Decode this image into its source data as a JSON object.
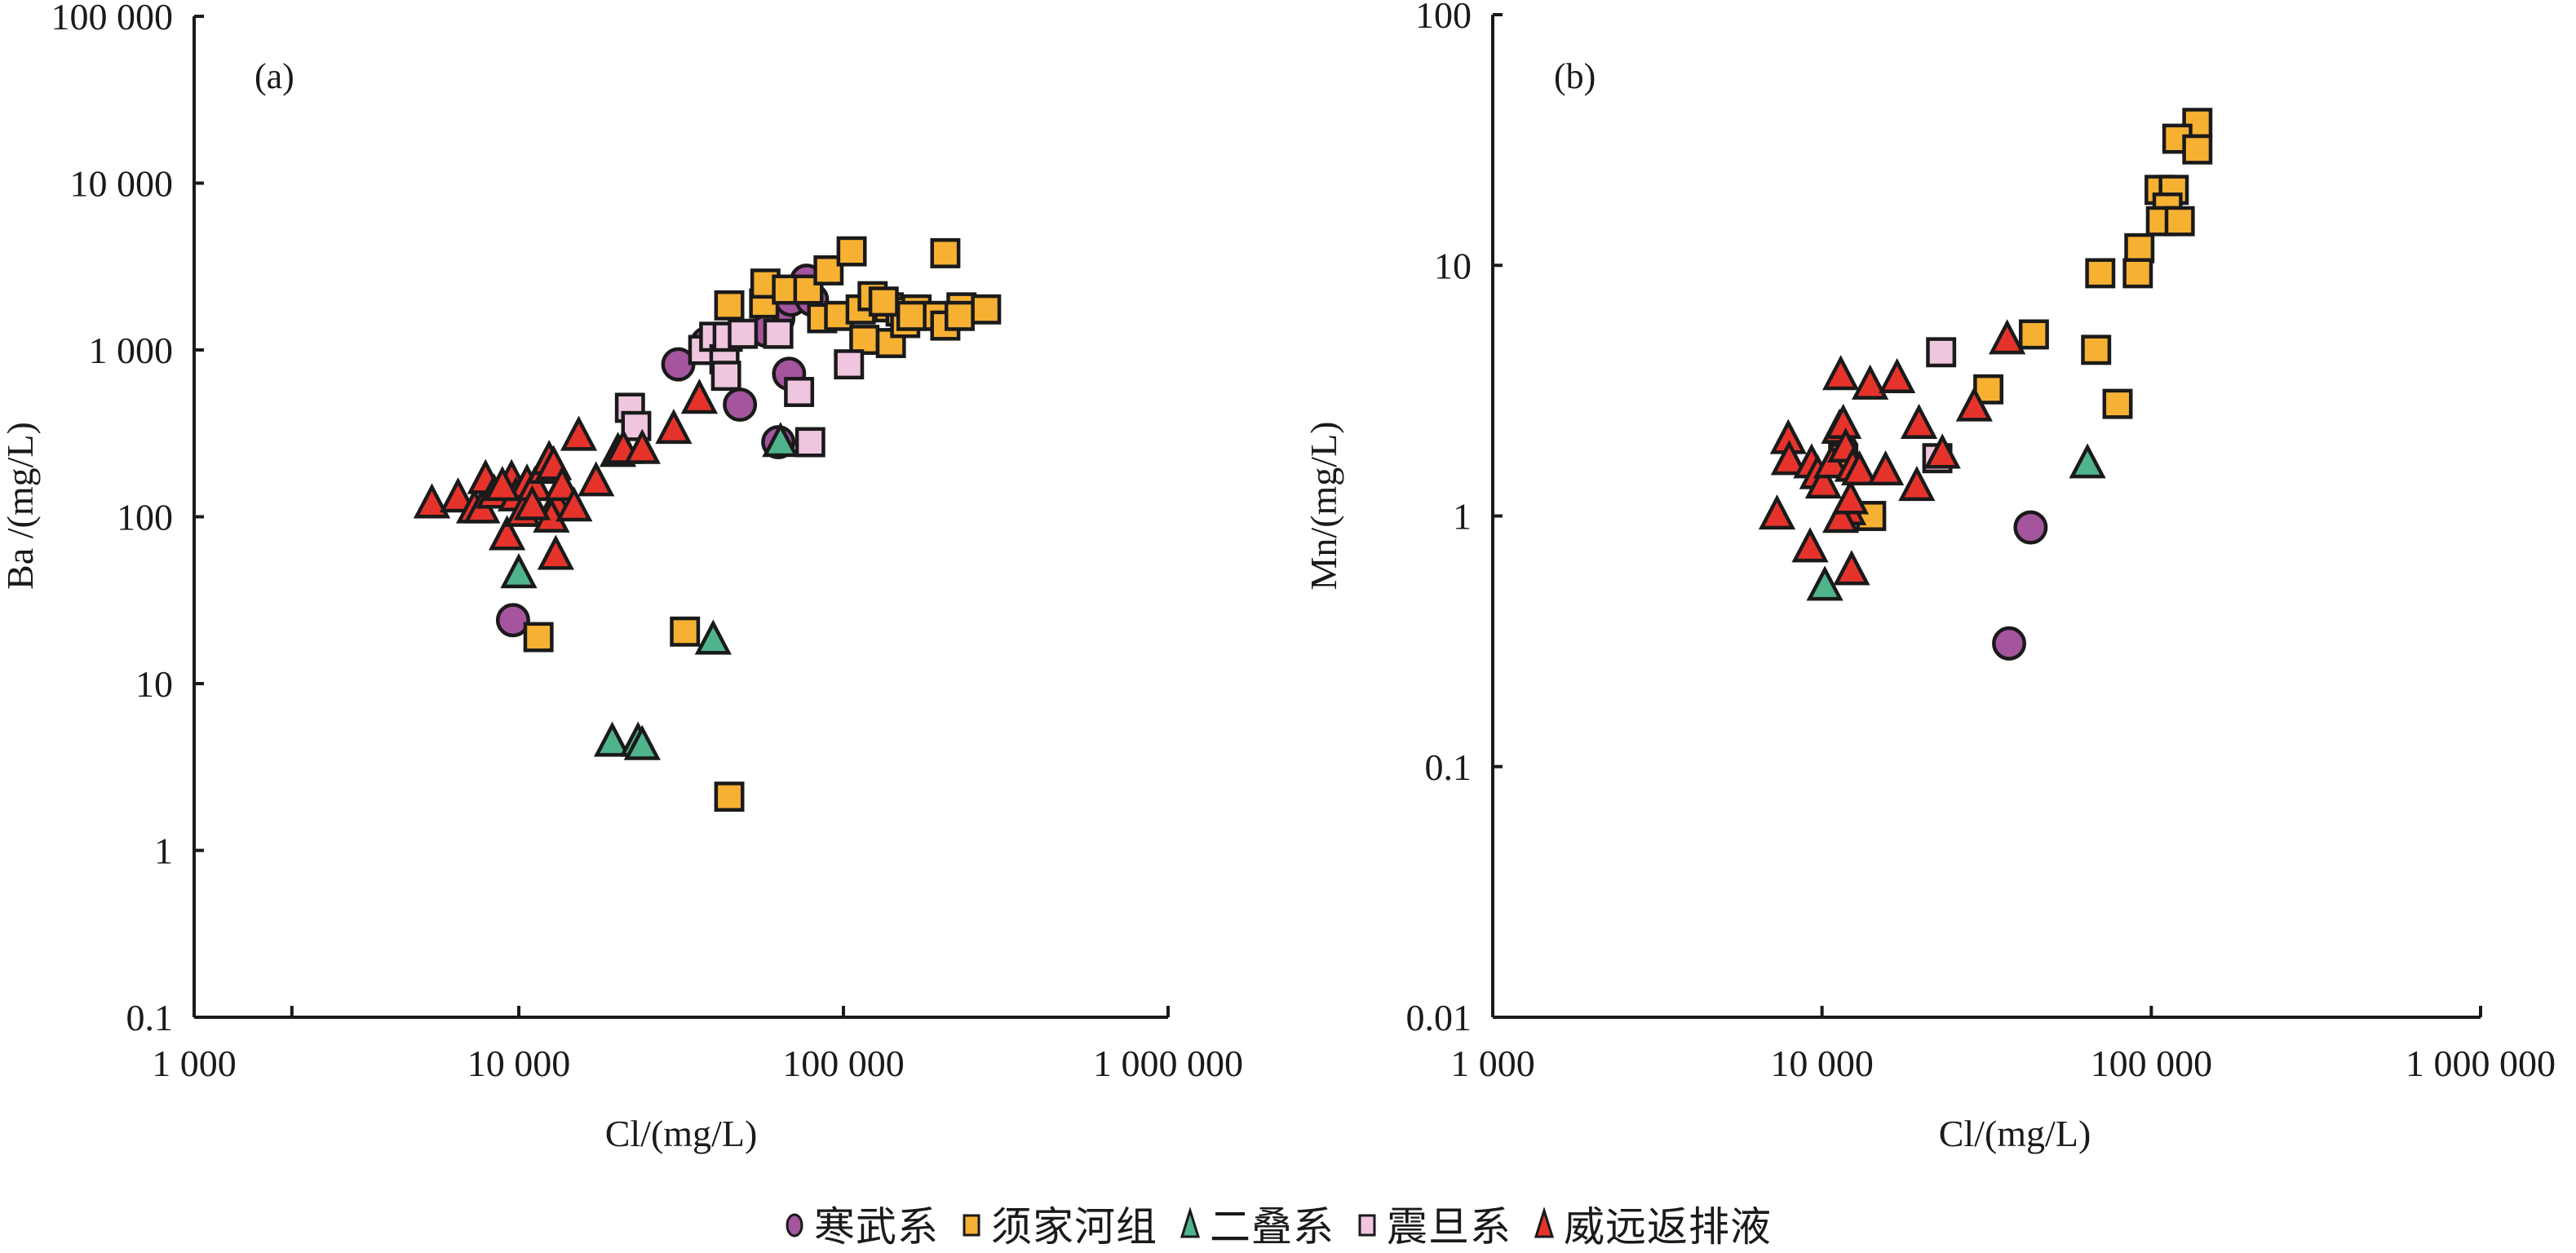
{
  "chart_data": [
    {
      "id": "a",
      "type": "scatter",
      "panel_label": "(a)",
      "title": "",
      "xlabel": "Cl/(mg/L)",
      "ylabel": "Ba /(mg/L)",
      "xscale": "log",
      "yscale": "log",
      "xlim": [
        1000,
        1000000
      ],
      "ylim": [
        0.1,
        100000
      ],
      "xticks": [
        1000,
        10000,
        100000,
        1000000
      ],
      "xtick_labels": [
        "1 000",
        "10 000",
        "100 000",
        "1 000 000"
      ],
      "x_minor_ticks": [
        2000
      ],
      "yticks": [
        0.1,
        1,
        10,
        100,
        1000,
        10000,
        100000
      ],
      "ytick_labels": [
        "0.1",
        "1",
        "10",
        "100",
        "1 000",
        "10 000",
        "100 000"
      ],
      "grid": false,
      "series": [
        {
          "name": "寒武系",
          "marker": "circle",
          "points": [
            [
              9600,
              24
            ],
            [
              31000,
              820
            ],
            [
              38000,
              1100
            ],
            [
              48000,
              470
            ],
            [
              63000,
              1550
            ],
            [
              68000,
              720
            ],
            [
              69000,
              2000
            ],
            [
              77000,
              2600
            ],
            [
              63000,
              280
            ],
            [
              58000,
              1300
            ],
            [
              80000,
              2000
            ]
          ]
        },
        {
          "name": "须家河组",
          "marker": "square",
          "points": [
            [
              11500,
              19
            ],
            [
              32500,
              20.5
            ],
            [
              44500,
              2.1
            ],
            [
              44500,
              1850
            ],
            [
              57000,
              1900
            ],
            [
              57500,
              2500
            ],
            [
              67000,
              2300
            ],
            [
              78000,
              2300
            ],
            [
              90000,
              3000
            ],
            [
              106000,
              3900
            ],
            [
              206000,
              3800
            ],
            [
              86000,
              1550
            ],
            [
              97000,
              1600
            ],
            [
              113000,
              1750
            ],
            [
              116000,
              1150
            ],
            [
              123000,
              2100
            ],
            [
              138000,
              1800
            ],
            [
              140000,
              1100
            ],
            [
              150000,
              1700
            ],
            [
              155000,
              1450
            ],
            [
              168000,
              1750
            ],
            [
              190000,
              1600
            ],
            [
              206000,
              1400
            ],
            [
              231000,
              1800
            ],
            [
              228000,
              1600
            ],
            [
              275000,
              1750
            ],
            [
              133000,
              1950
            ],
            [
              162000,
              1600
            ]
          ]
        },
        {
          "name": "二叠系",
          "marker": "triangle",
          "points": [
            [
              10000,
              45
            ],
            [
              19400,
              4.4
            ],
            [
              23300,
              4.4
            ],
            [
              24000,
              4.2
            ],
            [
              39700,
              18
            ],
            [
              64000,
              275
            ]
          ]
        },
        {
          "name": "震旦系",
          "marker": "square",
          "points": [
            [
              22000,
              450
            ],
            [
              23000,
              350
            ],
            [
              37000,
              1000
            ],
            [
              40000,
              1200
            ],
            [
              43000,
              880
            ],
            [
              43500,
              700
            ],
            [
              44000,
              1200
            ],
            [
              49000,
              1250
            ],
            [
              63000,
              1250
            ],
            [
              73000,
              560
            ],
            [
              79000,
              280
            ],
            [
              104000,
              820
            ]
          ]
        },
        {
          "name": "威远返排液",
          "marker": "triangle",
          "points": [
            [
              5400,
              118
            ],
            [
              6500,
              128
            ],
            [
              7300,
              110
            ],
            [
              7700,
              110
            ],
            [
              7900,
              165
            ],
            [
              8400,
              135
            ],
            [
              9200,
              76
            ],
            [
              9500,
              165
            ],
            [
              9800,
              130
            ],
            [
              10300,
              105
            ],
            [
              10600,
              155
            ],
            [
              11200,
              150
            ],
            [
              12000,
              190
            ],
            [
              12400,
              215
            ],
            [
              12800,
              200
            ],
            [
              13000,
              118
            ],
            [
              12600,
              97
            ],
            [
              13600,
              150
            ],
            [
              14800,
              113
            ],
            [
              13000,
              58
            ],
            [
              15300,
              300
            ],
            [
              17300,
              160
            ],
            [
              20200,
              240
            ],
            [
              21000,
              250
            ],
            [
              24000,
              250
            ],
            [
              30000,
              330
            ],
            [
              36000,
              500
            ],
            [
              11000,
              115
            ],
            [
              8900,
              150
            ]
          ]
        }
      ]
    },
    {
      "id": "b",
      "type": "scatter",
      "panel_label": "(b)",
      "title": "",
      "xlabel": "Cl/(mg/L)",
      "ylabel": "Mn/(mg/L)",
      "xscale": "log",
      "yscale": "log",
      "xlim": [
        1000,
        1000000
      ],
      "ylim": [
        0.01,
        100
      ],
      "xticks": [
        1000,
        10000,
        100000,
        1000000
      ],
      "xtick_labels": [
        "1 000",
        "10 000",
        "100 000",
        "1 000 000"
      ],
      "x_minor_ticks": [],
      "yticks": [
        0.01,
        0.1,
        1,
        10,
        100
      ],
      "ytick_labels": [
        "0.01",
        "0.1",
        "1",
        "10",
        "100"
      ],
      "grid": false,
      "series": [
        {
          "name": "寒武系",
          "marker": "circle",
          "points": [
            [
              43000,
              0.9
            ],
            [
              37000,
              0.31
            ]
          ]
        },
        {
          "name": "须家河组",
          "marker": "square",
          "points": [
            [
              138000,
              37
            ],
            [
              120000,
              32
            ],
            [
              138000,
              29
            ],
            [
              106000,
              20
            ],
            [
              117000,
              20
            ],
            [
              112000,
              17
            ],
            [
              107000,
              15
            ],
            [
              122000,
              15
            ],
            [
              92000,
              11.7
            ],
            [
              70000,
              9.3
            ],
            [
              91000,
              9.3
            ],
            [
              44000,
              5.3
            ],
            [
              68000,
              4.6
            ],
            [
              79000,
              2.8
            ],
            [
              32000,
              3.2
            ],
            [
              14100,
              1.0
            ],
            [
              11600,
              1.7
            ]
          ]
        },
        {
          "name": "二叠系",
          "marker": "triangle",
          "points": [
            [
              10200,
              0.52
            ],
            [
              64000,
              1.6
            ]
          ]
        },
        {
          "name": "震旦系",
          "marker": "square",
          "points": [
            [
              23000,
              4.5
            ],
            [
              22400,
              1.7
            ]
          ]
        },
        {
          "name": "威远返排液",
          "marker": "triangle",
          "points": [
            [
              7300,
              1.0
            ],
            [
              7900,
              2.0
            ],
            [
              7950,
              1.65
            ],
            [
              9200,
              0.74
            ],
            [
              9300,
              1.6
            ],
            [
              9700,
              1.45
            ],
            [
              10100,
              1.33
            ],
            [
              10700,
              1.6
            ],
            [
              11300,
              2.2
            ],
            [
              11400,
              3.6
            ],
            [
              11600,
              2.3
            ],
            [
              11800,
              1.85
            ],
            [
              12000,
              1.04
            ],
            [
              11400,
              0.97
            ],
            [
              12200,
              1.15
            ],
            [
              12400,
              1.55
            ],
            [
              13000,
              1.5
            ],
            [
              14000,
              3.3
            ],
            [
              12300,
              0.6
            ],
            [
              15600,
              1.5
            ],
            [
              16900,
              3.5
            ],
            [
              19700,
              2.3
            ],
            [
              19400,
              1.3
            ],
            [
              23200,
              1.75
            ],
            [
              29000,
              2.7
            ],
            [
              36500,
              5.0
            ]
          ]
        }
      ]
    }
  ],
  "legend": {
    "placement": "bottom-center",
    "items": [
      {
        "label": "寒武系",
        "marker": "circle",
        "color": "#A4559E"
      },
      {
        "label": "须家河组",
        "marker": "square",
        "color": "#F6B133"
      },
      {
        "label": "二叠系",
        "marker": "triangle",
        "color": "#4FB38C"
      },
      {
        "label": "震旦系",
        "marker": "square",
        "color": "#F0C6DF"
      },
      {
        "label": "威远返排液",
        "marker": "triangle",
        "color": "#E5332C"
      }
    ]
  }
}
